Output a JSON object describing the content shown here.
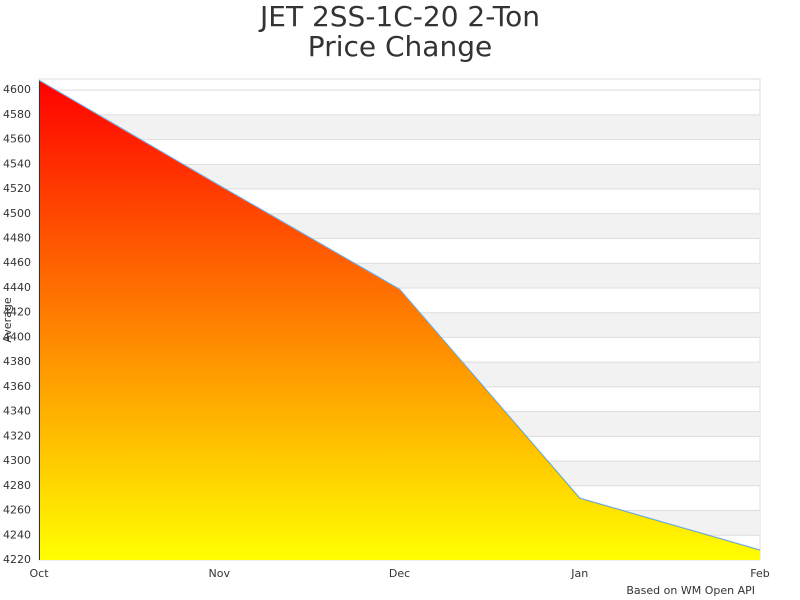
{
  "chart_data": {
    "type": "area",
    "title": "JET 2SS-1C-20 2-Ton",
    "subtitle": "Price Change",
    "y_label": "Average",
    "footer": "Based on WM Open API",
    "categories": [
      "Oct",
      "Nov",
      "Dec",
      "Jan",
      "Feb"
    ],
    "values": [
      4608,
      4523,
      4439,
      4270,
      4228
    ],
    "color_top": "#ff0000",
    "color_bottom": "#ffff00",
    "line_color": "#6fa8dc",
    "ylim": [
      4220,
      4609
    ],
    "yticks": [
      4220,
      4240,
      4260,
      4280,
      4300,
      4320,
      4340,
      4360,
      4380,
      4400,
      4420,
      4440,
      4460,
      4480,
      4500,
      4520,
      4540,
      4560,
      4580,
      4600
    ],
    "grid": true
  }
}
